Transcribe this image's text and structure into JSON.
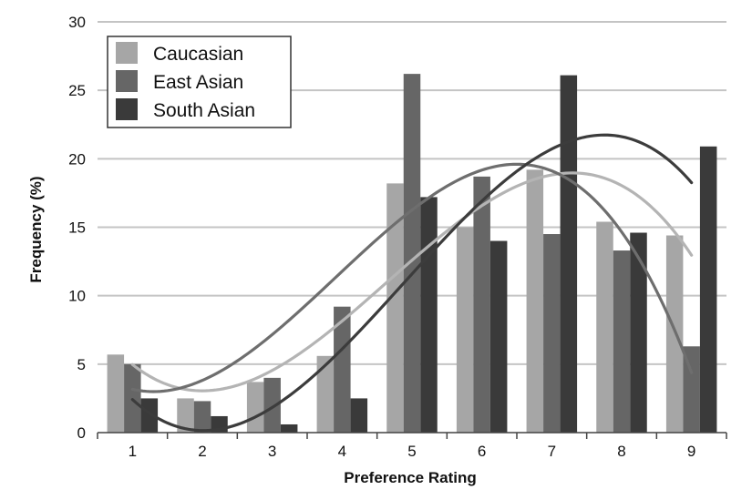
{
  "chart_data": {
    "type": "bar",
    "title": "",
    "xlabel": "Preference Rating",
    "ylabel": "Frequency (%)",
    "categories": [
      "1",
      "2",
      "3",
      "4",
      "5",
      "6",
      "7",
      "8",
      "9"
    ],
    "ylim": [
      0,
      30
    ],
    "yticks": [
      "0",
      "5",
      "10",
      "15",
      "20",
      "25",
      "30"
    ],
    "grid": true,
    "legend_position": "top-left",
    "trendlines": "polynomial fit per series",
    "series": [
      {
        "name": "Caucasian",
        "color": "#a6a6a6",
        "curve_color": "#b4b4b4",
        "values": [
          5.7,
          2.5,
          3.7,
          5.6,
          18.2,
          15.0,
          19.2,
          15.4,
          14.4
        ]
      },
      {
        "name": "East Asian",
        "color": "#666666",
        "curve_color": "#6e6e6e",
        "values": [
          5.0,
          2.3,
          4.0,
          9.2,
          26.2,
          18.7,
          14.5,
          13.3,
          6.3
        ]
      },
      {
        "name": "South Asian",
        "color": "#3a3a3a",
        "curve_color": "#3c3c3c",
        "values": [
          2.5,
          1.2,
          0.6,
          2.5,
          17.2,
          14.0,
          26.1,
          14.6,
          20.9
        ]
      }
    ]
  }
}
